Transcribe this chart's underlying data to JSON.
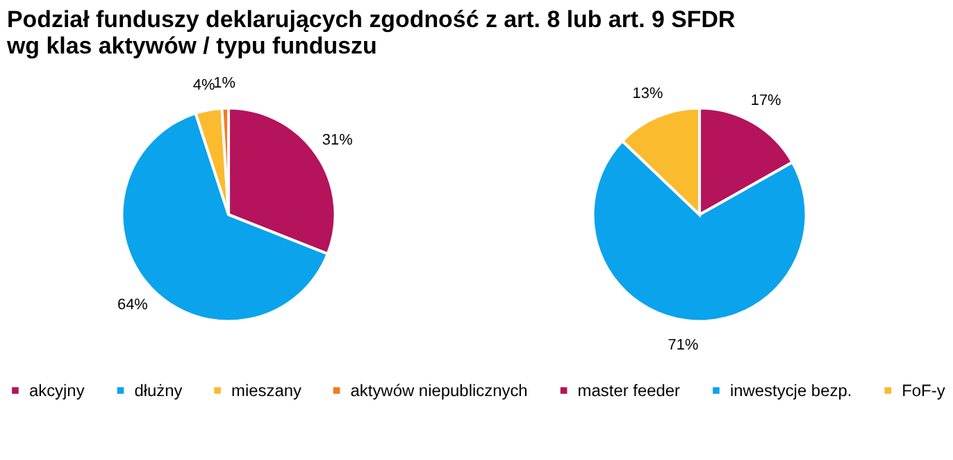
{
  "chart_data": [
    {
      "type": "pie",
      "title": [
        "Podział funduszy deklarujących zgodność z art. 8 lub art. 9 SFDR",
        "wg klas aktywów / typu funduszu"
      ],
      "categories": [
        "akcyjny",
        "dłużny",
        "mieszany",
        "aktywów niepublicznych"
      ],
      "values": [
        31,
        64,
        4,
        1
      ],
      "value_labels": [
        "31%",
        "64%",
        "4%",
        "1%"
      ],
      "colors": [
        "#b5135b",
        "#0ba3ec",
        "#fbbb2f",
        "#f47a20"
      ],
      "legend": "bottom"
    },
    {
      "type": "pie",
      "categories": [
        "master feeder",
        "inwestycje bezp.",
        "FoF-y"
      ],
      "values": [
        17,
        71,
        13
      ],
      "value_labels": [
        "17%",
        "71%",
        "13%"
      ],
      "colors": [
        "#b5135b",
        "#0ba3ec",
        "#fbbb2f"
      ],
      "legend": "bottom"
    }
  ]
}
